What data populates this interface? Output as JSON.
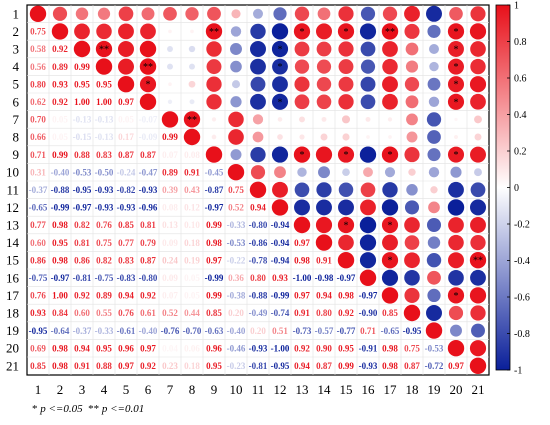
{
  "chart_data": {
    "type": "heatmap",
    "subtype": "correlation-matrix (lower: coefficients, upper: circles)",
    "variables": [
      "1",
      "2",
      "3",
      "4",
      "5",
      "6",
      "7",
      "8",
      "9",
      "10",
      "11",
      "12",
      "13",
      "14",
      "15",
      "16",
      "17",
      "18",
      "19",
      "20",
      "21"
    ],
    "lower_triangle": [
      [],
      [
        0.75
      ],
      [
        0.58,
        0.92
      ],
      [
        0.56,
        0.89,
        0.99
      ],
      [
        0.8,
        0.93,
        0.95,
        0.95
      ],
      [
        0.62,
        0.92,
        1.0,
        1.0,
        0.97
      ],
      [
        0.7,
        0.05,
        -0.13,
        -0.13,
        0.05,
        -0.07
      ],
      [
        0.66,
        0.05,
        -0.15,
        -0.13,
        0.17,
        -0.09,
        0.99
      ],
      [
        0.71,
        0.99,
        0.88,
        0.83,
        0.87,
        0.87,
        0.07,
        0.08
      ],
      [
        0.31,
        -0.4,
        -0.53,
        -0.5,
        -0.24,
        -0.47,
        0.89,
        0.91,
        -0.45
      ],
      [
        -0.37,
        -0.88,
        -0.95,
        -0.93,
        -0.82,
        -0.93,
        0.39,
        0.43,
        -0.87,
        0.75
      ],
      [
        -0.65,
        -0.99,
        -0.97,
        -0.93,
        -0.93,
        -0.96,
        0.08,
        0.12,
        -0.97,
        0.52,
        0.94
      ],
      [
        0.77,
        0.98,
        0.82,
        0.76,
        0.85,
        0.81,
        0.13,
        0.1,
        0.99,
        -0.33,
        -0.8,
        -0.94
      ],
      [
        0.6,
        0.95,
        0.81,
        0.75,
        0.77,
        0.79,
        0.09,
        0.18,
        0.98,
        -0.53,
        -0.86,
        -0.94,
        0.97
      ],
      [
        0.86,
        0.98,
        0.86,
        0.82,
        0.83,
        0.87,
        0.24,
        0.19,
        0.97,
        -0.22,
        -0.78,
        -0.94,
        0.98,
        0.91
      ],
      [
        -0.75,
        -0.97,
        -0.81,
        -0.75,
        -0.83,
        -0.8,
        0.09,
        0.05,
        -0.99,
        0.36,
        0.8,
        0.93,
        -1.0,
        -0.98,
        -0.97
      ],
      [
        0.76,
        1.0,
        0.92,
        0.89,
        0.94,
        0.92,
        0.07,
        0.05,
        0.99,
        -0.38,
        -0.88,
        -0.99,
        0.97,
        0.94,
        0.98,
        -0.97
      ],
      [
        0.93,
        0.84,
        0.6,
        0.55,
        0.76,
        0.61,
        0.52,
        0.44,
        0.85,
        0.2,
        -0.49,
        -0.74,
        0.91,
        0.8,
        0.92,
        -0.9,
        0.85
      ],
      [
        -0.95,
        -0.64,
        -0.37,
        -0.33,
        -0.61,
        -0.4,
        -0.76,
        -0.7,
        -0.63,
        -0.4,
        0.2,
        0.51,
        -0.73,
        -0.57,
        -0.77,
        0.71,
        -0.65,
        -0.95
      ],
      [
        0.69,
        0.98,
        0.94,
        0.95,
        0.96,
        0.97,
        0.04,
        0.06,
        0.96,
        -0.46,
        -0.93,
        -1.0,
        0.92,
        0.9,
        0.95,
        -0.91,
        0.98,
        0.75,
        -0.53
      ],
      [
        0.85,
        0.98,
        0.91,
        0.88,
        0.97,
        0.92,
        0.23,
        0.18,
        0.95,
        -0.23,
        -0.81,
        -0.95,
        0.94,
        0.87,
        0.99,
        -0.93,
        0.98,
        0.87,
        -0.72,
        0.97
      ]
    ],
    "significance_marks": [
      {
        "r": 2,
        "c": 9,
        "label": "**"
      },
      {
        "r": 2,
        "c": 13,
        "label": "*"
      },
      {
        "r": 2,
        "c": 15,
        "label": "*"
      },
      {
        "r": 2,
        "c": 17,
        "label": "**"
      },
      {
        "r": 2,
        "c": 20,
        "label": "*"
      },
      {
        "r": 3,
        "c": 4,
        "label": "**"
      },
      {
        "r": 3,
        "c": 12,
        "label": "*"
      },
      {
        "r": 3,
        "c": 20,
        "label": "*"
      },
      {
        "r": 4,
        "c": 6,
        "label": "**"
      },
      {
        "r": 4,
        "c": 12,
        "label": "*"
      },
      {
        "r": 4,
        "c": 20,
        "label": "*"
      },
      {
        "r": 5,
        "c": 6,
        "label": "*"
      },
      {
        "r": 5,
        "c": 20,
        "label": "*"
      },
      {
        "r": 6,
        "c": 12,
        "label": "*"
      },
      {
        "r": 6,
        "c": 20,
        "label": "*"
      },
      {
        "r": 7,
        "c": 8,
        "label": "**"
      },
      {
        "r": 9,
        "c": 13,
        "label": "*"
      },
      {
        "r": 9,
        "c": 15,
        "label": "*"
      },
      {
        "r": 9,
        "c": 17,
        "label": "*"
      },
      {
        "r": 9,
        "c": 20,
        "label": "*"
      },
      {
        "r": 13,
        "c": 15,
        "label": "*"
      },
      {
        "r": 13,
        "c": 17,
        "label": "*"
      },
      {
        "r": 15,
        "c": 17,
        "label": "*"
      },
      {
        "r": 15,
        "c": 21,
        "label": "**"
      },
      {
        "r": 17,
        "c": 20,
        "label": "*"
      }
    ],
    "colorbar": {
      "range": [
        -1,
        1
      ],
      "ticks": [
        "1",
        "0.8",
        "0.6",
        "0.4",
        "0.2",
        "0",
        "-0.2",
        "-0.4",
        "-0.6",
        "-0.8",
        "-1"
      ],
      "colors": {
        "negative": "#0a1f9a",
        "zero": "#ffffff",
        "positive": "#e8101a"
      }
    },
    "legend": "right",
    "footnote": {
      "single_star": "*",
      "single_text": " p <=0.05",
      "double_star": "**",
      "double_text": " p <=0.01"
    }
  }
}
